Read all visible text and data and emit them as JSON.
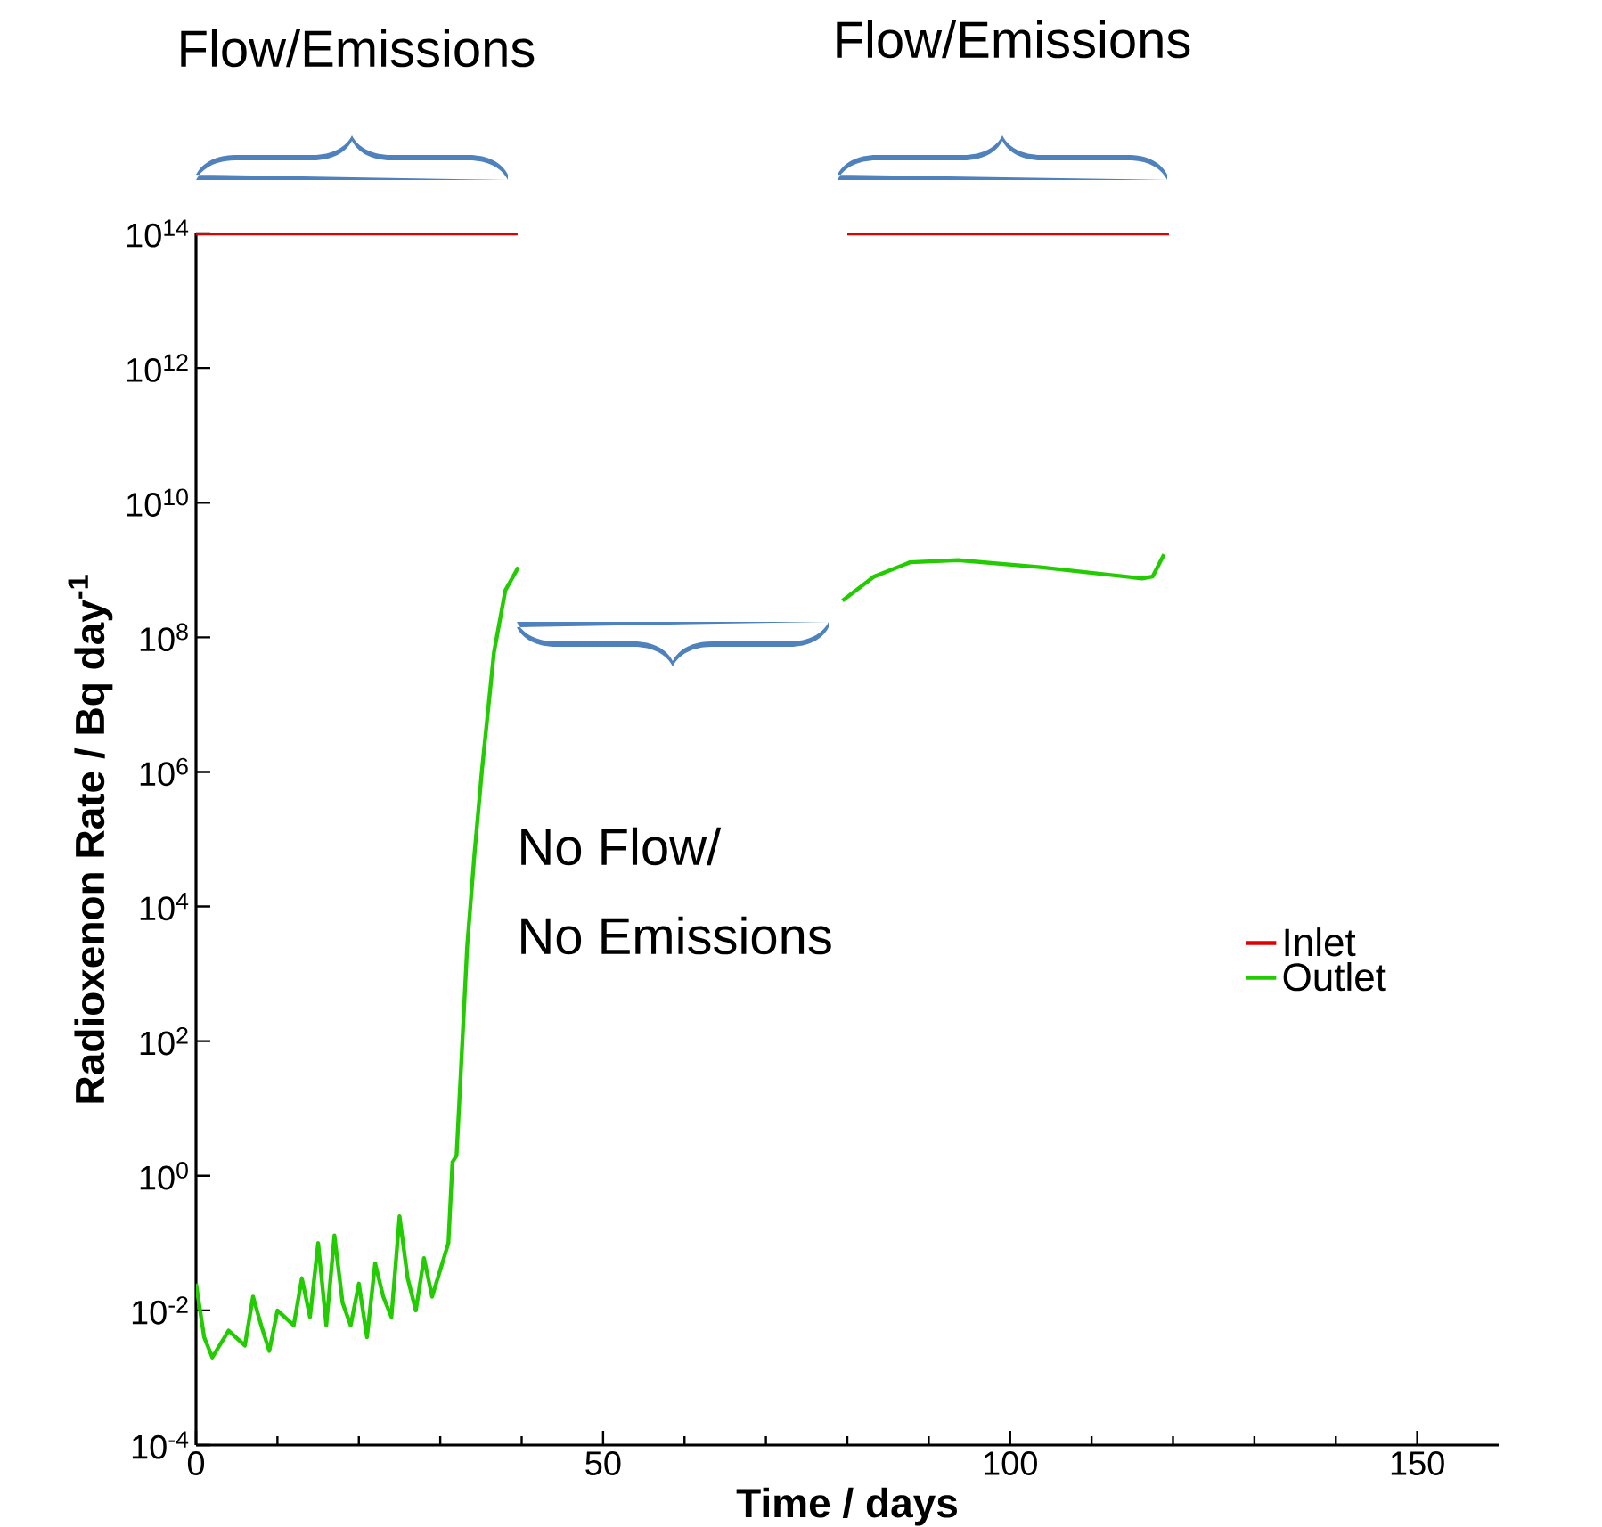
{
  "chart_data": {
    "type": "line",
    "xlabel": "Time / days",
    "ylabel": "Radioxenon Rate / Bq day$^{-1}$",
    "xlim": [
      0,
      160
    ],
    "xticks": [
      0,
      50,
      100,
      150
    ],
    "ylim": [
      0.0001,
      100000000000000.0
    ],
    "log": "y",
    "yticks": [
      {
        "value": 0.0001,
        "label": "10$^{-4}$"
      },
      {
        "value": 0.01,
        "label": "10$^{-2}$"
      },
      {
        "value": 1,
        "label": "10$^{0}$"
      },
      {
        "value": 100,
        "label": "10$^{2}$"
      },
      {
        "value": 10000,
        "label": "10$^{4}$"
      },
      {
        "value": 1000000,
        "label": "10$^{6}$"
      },
      {
        "value": 100000000,
        "label": "10$^{8}$"
      },
      {
        "value": 10000000000,
        "label": "10$^{10}$"
      },
      {
        "value": 1000000000000,
        "label": "10$^{12}$"
      },
      {
        "value": 100000000000000.0,
        "label": "10$^{14}$"
      }
    ],
    "legend": "right",
    "marker": "none",
    "line_style": "solid",
    "annotations": [
      "Flow/Emissions",
      "Flow/Emissions",
      "No Flow/",
      "No Emissions"
    ],
    "series": [
      {
        "name": "Inlet",
        "color": "#e00000",
        "x": [
          0,
          39.5,
          39.6,
          80,
          119.5
        ],
        "values": [
          100000000000000.0,
          100000000000000.0,
          null,
          100000000000000.0,
          100000000000000.0
        ]
      },
      {
        "name": "Outlet",
        "color": "#22cc00",
        "x": [
          0,
          1,
          2,
          4,
          6,
          7,
          8,
          9,
          10,
          12,
          13,
          14,
          15,
          16,
          17,
          18,
          19,
          20,
          21,
          22,
          23,
          24,
          25,
          26,
          27,
          28,
          29,
          30,
          31,
          31.5,
          32,
          32.5,
          33.3,
          34.2,
          35.1,
          36.6,
          38,
          39.6,
          39.7,
          79.4,
          83.3,
          87.7,
          93.6,
          103.7,
          116.2,
          117.5,
          118.9
        ],
        "values": [
          0.025,
          0.004,
          0.002,
          0.005,
          0.003,
          0.016,
          0.006,
          0.0025,
          0.01,
          0.006,
          0.03,
          0.008,
          0.1,
          0.006,
          0.13,
          0.013,
          0.006,
          0.025,
          0.004,
          0.05,
          0.016,
          0.008,
          0.25,
          0.03,
          0.01,
          0.06,
          0.016,
          0.04,
          0.1,
          1.6,
          2,
          30,
          2500,
          60000,
          1000000,
          60000000,
          500000000,
          1100000000,
          null,
          350000000,
          800000000,
          1300000000,
          1400000000,
          1100000000,
          750000000,
          800000000,
          1700000000
        ]
      }
    ]
  }
}
